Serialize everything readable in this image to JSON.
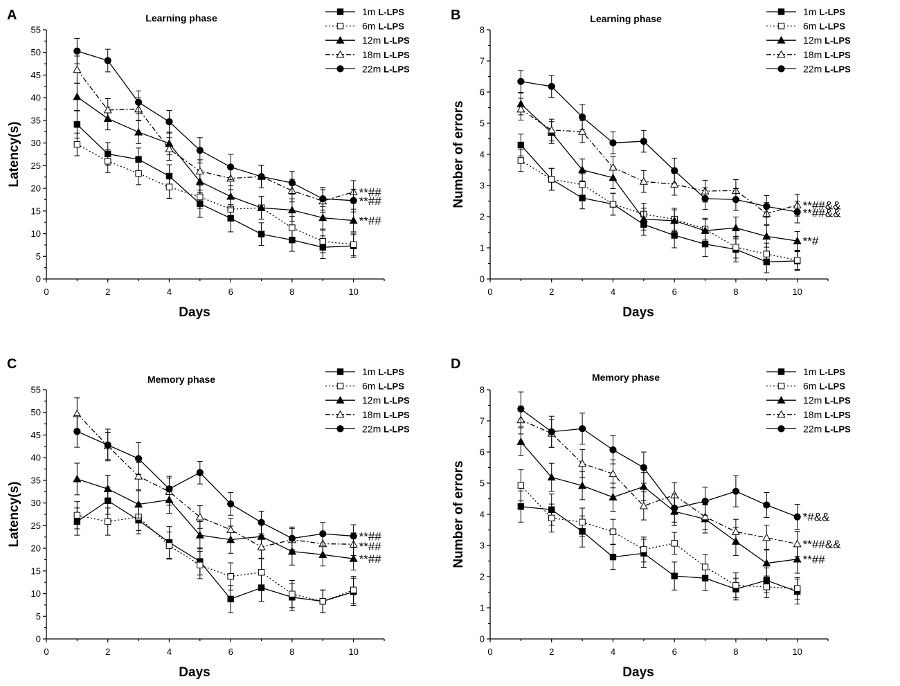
{
  "chart_data": [
    {
      "type": "line",
      "panel_letter": "A",
      "title": "Learning phase",
      "xlabel": "Days",
      "ylabel": "Latency(s)",
      "xlim": [
        0,
        11
      ],
      "ylim": [
        0,
        55
      ],
      "xticks": [
        0,
        2,
        4,
        6,
        8,
        10
      ],
      "yticks": [
        0,
        5,
        10,
        15,
        20,
        25,
        30,
        35,
        40,
        45,
        50,
        55
      ],
      "x": [
        1,
        2,
        3,
        4,
        5,
        6,
        7,
        8,
        9,
        10
      ],
      "series": [
        {
          "name": "1m",
          "name_suffix": "L-LPS",
          "marker": "square-filled",
          "dash": "solid",
          "values": [
            34.1,
            27.6,
            26.4,
            22.7,
            16.6,
            13.4,
            9.9,
            8.6,
            7.0,
            7.3
          ],
          "errors": [
            3.0,
            2.5,
            2.5,
            2.5,
            3.0,
            3.0,
            2.5,
            2.5,
            2.5,
            2.5
          ]
        },
        {
          "name": "6m",
          "name_suffix": "L-LPS",
          "marker": "square-open",
          "dash": "dot",
          "values": [
            29.7,
            26.0,
            23.3,
            20.3,
            18.1,
            15.4,
            15.7,
            11.3,
            8.3,
            7.6
          ],
          "errors": [
            2.5,
            2.5,
            2.5,
            2.5,
            2.5,
            2.5,
            2.5,
            2.5,
            2.5,
            2.5
          ]
        },
        {
          "name": "12m",
          "name_suffix": "L-LPS",
          "marker": "triangle-filled",
          "dash": "solid",
          "values": [
            40.2,
            35.4,
            32.4,
            29.9,
            21.5,
            18.2,
            15.7,
            15.2,
            13.5,
            12.9
          ],
          "errors": [
            3.0,
            2.5,
            2.5,
            2.5,
            2.5,
            2.5,
            2.5,
            2.5,
            2.5,
            2.5
          ]
        },
        {
          "name": "18m",
          "name_suffix": "L-LPS",
          "marker": "triangle-open",
          "dash": "dashdot",
          "values": [
            46.2,
            37.3,
            37.5,
            28.7,
            23.8,
            22.2,
            22.6,
            19.5,
            17.2,
            19.2
          ],
          "errors": [
            3.0,
            2.5,
            2.5,
            2.5,
            2.5,
            2.5,
            2.5,
            2.5,
            2.5,
            2.5
          ]
        },
        {
          "name": "22m",
          "name_suffix": "L-LPS",
          "marker": "circle-filled",
          "dash": "solid",
          "values": [
            50.3,
            48.2,
            39.0,
            34.7,
            28.4,
            24.7,
            22.6,
            21.2,
            17.7,
            17.3
          ],
          "errors": [
            2.8,
            2.5,
            2.5,
            2.5,
            2.8,
            2.8,
            2.5,
            2.5,
            2.5,
            2.5
          ]
        }
      ],
      "annotations": [
        {
          "text": "**##",
          "y": 19.2
        },
        {
          "text": "**##",
          "y": 17.3
        },
        {
          "text": "**##",
          "y": 12.9
        }
      ]
    },
    {
      "type": "line",
      "panel_letter": "B",
      "title": "Learning phase",
      "xlabel": "Days",
      "ylabel": "Number of errors",
      "xlim": [
        0,
        11
      ],
      "ylim": [
        0,
        8
      ],
      "xticks": [
        0,
        2,
        4,
        6,
        8,
        10
      ],
      "yticks": [
        0,
        1,
        2,
        3,
        4,
        5,
        6,
        7,
        8
      ],
      "x": [
        1,
        2,
        3,
        4,
        5,
        6,
        7,
        8,
        9,
        10
      ],
      "series": [
        {
          "name": "1m",
          "name_suffix": "L-LPS",
          "marker": "square-filled",
          "dash": "solid",
          "values": [
            4.3,
            3.2,
            2.6,
            2.4,
            1.75,
            1.4,
            1.12,
            0.95,
            0.55,
            0.58
          ],
          "errors": [
            0.35,
            0.35,
            0.35,
            0.35,
            0.35,
            0.4,
            0.4,
            0.4,
            0.35,
            0.3
          ]
        },
        {
          "name": "6m",
          "name_suffix": "L-LPS",
          "marker": "square-open",
          "dash": "dot",
          "values": [
            3.8,
            3.2,
            3.03,
            2.4,
            2.08,
            1.92,
            1.6,
            1.02,
            0.8,
            0.6
          ],
          "errors": [
            0.35,
            0.35,
            0.35,
            0.35,
            0.35,
            0.35,
            0.35,
            0.35,
            0.35,
            0.3
          ]
        },
        {
          "name": "12m",
          "name_suffix": "L-LPS",
          "marker": "triangle-filled",
          "dash": "solid",
          "values": [
            5.62,
            4.7,
            3.5,
            3.25,
            1.92,
            1.87,
            1.55,
            1.64,
            1.37,
            1.22
          ],
          "errors": [
            0.35,
            0.35,
            0.35,
            0.35,
            0.35,
            0.35,
            0.35,
            0.35,
            0.35,
            0.3
          ]
        },
        {
          "name": "18m",
          "name_suffix": "L-LPS",
          "marker": "triangle-open",
          "dash": "dashdot",
          "values": [
            5.45,
            4.78,
            4.73,
            3.58,
            3.13,
            3.04,
            2.82,
            2.84,
            2.1,
            2.37
          ],
          "errors": [
            0.35,
            0.35,
            0.35,
            0.35,
            0.35,
            0.35,
            0.35,
            0.35,
            0.35,
            0.35
          ]
        },
        {
          "name": "22m",
          "name_suffix": "L-LPS",
          "marker": "circle-filled",
          "dash": "solid",
          "values": [
            6.34,
            6.18,
            5.2,
            4.37,
            4.42,
            3.48,
            2.58,
            2.55,
            2.33,
            2.15
          ],
          "errors": [
            0.35,
            0.35,
            0.4,
            0.35,
            0.35,
            0.4,
            0.35,
            0.35,
            0.35,
            0.35
          ]
        }
      ],
      "annotations": [
        {
          "text": "**##&&",
          "y": 2.37
        },
        {
          "text": "**##&&",
          "y": 2.12
        },
        {
          "text": "**#",
          "y": 1.22
        }
      ]
    },
    {
      "type": "line",
      "panel_letter": "C",
      "title": "Memory phase",
      "xlabel": "Days",
      "ylabel": "Latency(s)",
      "xlim": [
        0,
        11
      ],
      "ylim": [
        0,
        55
      ],
      "xticks": [
        0,
        2,
        4,
        6,
        8,
        10
      ],
      "yticks": [
        0,
        5,
        10,
        15,
        20,
        25,
        30,
        35,
        40,
        45,
        50,
        55
      ],
      "x": [
        1,
        2,
        3,
        4,
        5,
        6,
        7,
        8,
        9,
        10
      ],
      "series": [
        {
          "name": "1m",
          "name_suffix": "L-LPS",
          "marker": "square-filled",
          "dash": "solid",
          "values": [
            25.9,
            30.5,
            26.2,
            21.3,
            17.1,
            8.8,
            11.3,
            9.2,
            8.3,
            10.4
          ],
          "errors": [
            3.0,
            3.0,
            3.0,
            3.5,
            3.0,
            3.0,
            3.0,
            3.0,
            2.5,
            3.0
          ]
        },
        {
          "name": "6m",
          "name_suffix": "L-LPS",
          "marker": "square-open",
          "dash": "dot",
          "values": [
            27.3,
            25.9,
            26.9,
            20.6,
            16.3,
            13.8,
            14.7,
            9.9,
            8.3,
            10.8
          ],
          "errors": [
            3.0,
            3.0,
            3.0,
            3.0,
            3.0,
            3.0,
            3.0,
            3.0,
            2.5,
            3.0
          ]
        },
        {
          "name": "12m",
          "name_suffix": "L-LPS",
          "marker": "triangle-filled",
          "dash": "solid",
          "values": [
            35.3,
            33.1,
            29.7,
            30.7,
            22.9,
            21.9,
            22.6,
            19.3,
            18.6,
            17.7
          ],
          "errors": [
            3.5,
            3.0,
            3.0,
            3.0,
            3.0,
            3.0,
            3.0,
            3.0,
            2.5,
            2.5
          ]
        },
        {
          "name": "18m",
          "name_suffix": "L-LPS",
          "marker": "triangle-open",
          "dash": "dashdot",
          "values": [
            49.7,
            42.6,
            35.9,
            32.5,
            26.9,
            24.1,
            20.3,
            21.9,
            21.0,
            20.9
          ],
          "errors": [
            3.5,
            3.0,
            3.0,
            3.0,
            2.5,
            2.5,
            2.5,
            2.5,
            2.5,
            2.5
          ]
        },
        {
          "name": "22m",
          "name_suffix": "L-LPS",
          "marker": "circle-filled",
          "dash": "solid",
          "values": [
            45.8,
            42.8,
            39.8,
            33.1,
            36.7,
            29.8,
            25.7,
            22.2,
            23.2,
            22.7
          ],
          "errors": [
            3.5,
            3.5,
            3.5,
            2.8,
            2.5,
            2.5,
            2.5,
            2.5,
            2.5,
            2.5
          ]
        }
      ],
      "annotations": [
        {
          "text": "**##",
          "y": 22.7
        },
        {
          "text": "**##",
          "y": 20.5
        },
        {
          "text": "**##",
          "y": 17.7
        }
      ]
    },
    {
      "type": "line",
      "panel_letter": "D",
      "title": "Memory phase",
      "xlabel": "Days",
      "ylabel": "Number of errors",
      "xlim": [
        0,
        11
      ],
      "ylim": [
        0,
        8
      ],
      "xticks": [
        0,
        2,
        4,
        6,
        8,
        10
      ],
      "yticks": [
        0,
        1,
        2,
        3,
        4,
        5,
        6,
        7,
        8
      ],
      "x": [
        1,
        2,
        3,
        4,
        5,
        6,
        7,
        8,
        9,
        10
      ],
      "series": [
        {
          "name": "1m",
          "name_suffix": "L-LPS",
          "marker": "square-filled",
          "dash": "solid",
          "values": [
            4.25,
            4.15,
            3.45,
            2.63,
            2.75,
            2.02,
            1.95,
            1.6,
            1.88,
            1.52
          ],
          "errors": [
            0.5,
            0.5,
            0.5,
            0.4,
            0.45,
            0.45,
            0.4,
            0.35,
            0.4,
            0.4
          ]
        },
        {
          "name": "6m",
          "name_suffix": "L-LPS",
          "marker": "square-open",
          "dash": "dot",
          "values": [
            4.93,
            3.88,
            3.75,
            3.44,
            2.87,
            3.07,
            2.31,
            1.72,
            1.67,
            1.62
          ],
          "errors": [
            0.5,
            0.45,
            0.45,
            0.4,
            0.4,
            0.35,
            0.4,
            0.4,
            0.35,
            0.35
          ]
        },
        {
          "name": "12m",
          "name_suffix": "L-LPS",
          "marker": "triangle-filled",
          "dash": "solid",
          "values": [
            6.33,
            5.19,
            4.92,
            4.55,
            4.89,
            4.09,
            3.85,
            3.13,
            2.43,
            2.56
          ],
          "errors": [
            0.45,
            0.45,
            0.45,
            0.45,
            0.45,
            0.45,
            0.45,
            0.45,
            0.45,
            0.45
          ]
        },
        {
          "name": "18m",
          "name_suffix": "L-LPS",
          "marker": "triangle-open",
          "dash": "dashdot",
          "values": [
            7.03,
            6.6,
            5.63,
            5.3,
            4.27,
            4.62,
            3.92,
            3.44,
            3.25,
            3.05
          ],
          "errors": [
            0.45,
            0.45,
            0.45,
            0.45,
            0.45,
            0.4,
            0.4,
            0.4,
            0.4,
            0.4
          ]
        },
        {
          "name": "22m",
          "name_suffix": "L-LPS",
          "marker": "circle-filled",
          "dash": "solid",
          "values": [
            7.38,
            6.65,
            6.75,
            6.07,
            5.5,
            4.2,
            4.42,
            4.74,
            4.3,
            3.92
          ],
          "errors": [
            0.55,
            0.5,
            0.5,
            0.45,
            0.5,
            0.45,
            0.45,
            0.5,
            0.4,
            0.4
          ]
        }
      ],
      "annotations": [
        {
          "text": "*#&&",
          "y": 3.92
        },
        {
          "text": "**##&&",
          "y": 3.05
        },
        {
          "text": "**##",
          "y": 2.56
        }
      ]
    }
  ]
}
